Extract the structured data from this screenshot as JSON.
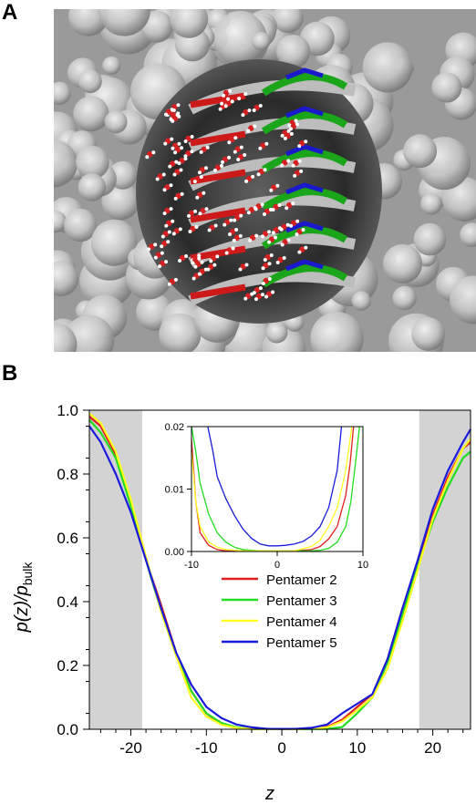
{
  "panels": {
    "a_label": "A",
    "b_label": "B"
  },
  "colors": {
    "surface": "#9a9a9a",
    "surface_light": "#d0d0d0",
    "red": "#cc1a1a",
    "green": "#1aa51a",
    "blue": "#1a1acc",
    "gray_band": "#d3d3d3"
  },
  "chart_data": [
    {
      "type": "line",
      "ylabel": "p(z)/p_bulk",
      "ylabel_main": "p(z)/p",
      "ylabel_sub": "bulk",
      "xlabel": "z",
      "xlim": [
        -25.5,
        25
      ],
      "ylim": [
        0,
        1.0
      ],
      "xticks": [
        -20,
        -10,
        0,
        10,
        20
      ],
      "xtick_labels": [
        "-20",
        "-10",
        "0",
        "10",
        "20"
      ],
      "yticks": [
        0,
        0.2,
        0.4,
        0.6,
        0.8,
        1.0
      ],
      "ytick_labels": [
        "0.0",
        "0.2",
        "0.4",
        "0.6",
        "0.8",
        "1.0"
      ],
      "shaded_x_ranges": [
        [
          -25.5,
          -18.5
        ],
        [
          18.2,
          25
        ]
      ],
      "legend_position": "center",
      "series": [
        {
          "name": "Pentamer 2",
          "color": "#e02020",
          "x": [
            -25.5,
            -24,
            -22,
            -20,
            -18,
            -16,
            -14,
            -12,
            -10,
            -8,
            -6,
            -4,
            -2,
            0,
            2,
            4,
            6,
            8,
            10,
            12,
            14,
            16,
            18,
            20,
            22,
            24,
            25
          ],
          "y": [
            0.98,
            0.95,
            0.86,
            0.71,
            0.53,
            0.39,
            0.24,
            0.12,
            0.05,
            0.015,
            0.004,
            0.001,
            0.0005,
            0.0005,
            0.0005,
            0.002,
            0.008,
            0.03,
            0.07,
            0.11,
            0.22,
            0.38,
            0.52,
            0.67,
            0.79,
            0.88,
            0.9
          ]
        },
        {
          "name": "Pentamer 3",
          "color": "#22dd22",
          "x": [
            -25.5,
            -24,
            -22,
            -20,
            -18,
            -16,
            -14,
            -12,
            -10,
            -8,
            -6,
            -4,
            -2,
            0,
            2,
            4,
            6,
            8,
            10,
            12,
            14,
            16,
            18,
            20,
            22,
            24,
            25
          ],
          "y": [
            0.97,
            0.93,
            0.85,
            0.7,
            0.53,
            0.37,
            0.23,
            0.12,
            0.05,
            0.02,
            0.006,
            0.001,
            0.0005,
            0.0005,
            0.0005,
            0.0005,
            0.001,
            0.007,
            0.05,
            0.1,
            0.21,
            0.36,
            0.51,
            0.65,
            0.76,
            0.85,
            0.87
          ]
        },
        {
          "name": "Pentamer 4",
          "color": "#ffff20",
          "x": [
            -25.5,
            -24,
            -22,
            -20,
            -18,
            -16,
            -14,
            -12,
            -10,
            -8,
            -6,
            -4,
            -2,
            0,
            2,
            4,
            6,
            8,
            10,
            12,
            14,
            16,
            18,
            20,
            22,
            24,
            25
          ],
          "y": [
            0.99,
            0.96,
            0.87,
            0.72,
            0.54,
            0.37,
            0.23,
            0.1,
            0.04,
            0.014,
            0.004,
            0.001,
            0.0005,
            0.0005,
            0.0005,
            0.002,
            0.006,
            0.025,
            0.06,
            0.1,
            0.19,
            0.34,
            0.5,
            0.66,
            0.78,
            0.88,
            0.91
          ]
        },
        {
          "name": "Pentamer 5",
          "color": "#1a1adc",
          "x": [
            -25.5,
            -24,
            -22,
            -20,
            -18,
            -16,
            -14,
            -12,
            -10,
            -8,
            -6,
            -4,
            -2,
            0,
            2,
            4,
            6,
            8,
            10,
            12,
            14,
            16,
            18,
            20,
            22,
            24,
            25
          ],
          "y": [
            0.95,
            0.9,
            0.8,
            0.68,
            0.53,
            0.38,
            0.24,
            0.14,
            0.07,
            0.035,
            0.015,
            0.006,
            0.0015,
            0.0012,
            0.0015,
            0.005,
            0.015,
            0.05,
            0.08,
            0.11,
            0.22,
            0.38,
            0.53,
            0.69,
            0.81,
            0.9,
            0.94
          ]
        }
      ]
    },
    {
      "type": "line",
      "role": "inset",
      "xlim": [
        -10,
        10
      ],
      "ylim": [
        0,
        0.02
      ],
      "xticks": [
        -10,
        0,
        10
      ],
      "xtick_labels": [
        "-10",
        "0",
        "10"
      ],
      "yticks": [
        0,
        0.01,
        0.02
      ],
      "ytick_labels": [
        "0.00",
        "0.01",
        "0.02"
      ],
      "series": [
        {
          "name": "Pentamer 2",
          "color": "#e02020",
          "x": [
            -10,
            -9.5,
            -9,
            -8,
            -7,
            -6,
            -5,
            -4,
            -2,
            0,
            2,
            4,
            5,
            6,
            7,
            8,
            8.5,
            8.9
          ],
          "y": [
            0.018,
            0.008,
            0.003,
            0.001,
            0.0003,
            0.0001,
            0.0001,
            0.0001,
            0.0001,
            0.0001,
            0.0001,
            0.0003,
            0.0008,
            0.002,
            0.004,
            0.009,
            0.014,
            0.02
          ]
        },
        {
          "name": "Pentamer 3",
          "color": "#22dd22",
          "x": [
            -10,
            -9.5,
            -9,
            -8,
            -7,
            -6,
            -5,
            -4,
            -2,
            0,
            2,
            4,
            5,
            6,
            7,
            8,
            8.6,
            9.2,
            9.6
          ],
          "y": [
            0.02,
            0.016,
            0.011,
            0.006,
            0.003,
            0.0015,
            0.0007,
            0.0003,
            0.0001,
            0.0001,
            0.0001,
            0.0001,
            0.0002,
            0.0005,
            0.0015,
            0.004,
            0.008,
            0.015,
            0.02
          ]
        },
        {
          "name": "Pentamer 4",
          "color": "#ffff20",
          "x": [
            -10,
            -9.5,
            -9,
            -8,
            -7,
            -6,
            -5,
            -4,
            -2,
            0,
            2,
            4,
            5,
            6,
            7,
            8,
            8.7
          ],
          "y": [
            0.016,
            0.008,
            0.004,
            0.0015,
            0.0007,
            0.0003,
            0.0002,
            0.0001,
            0.0001,
            0.0001,
            0.0001,
            0.0008,
            0.0018,
            0.004,
            0.007,
            0.013,
            0.02
          ]
        },
        {
          "name": "Pentamer 5",
          "color": "#1a1adc",
          "x": [
            -8.1,
            -7.5,
            -7,
            -6,
            -5,
            -4,
            -3,
            -2,
            -1,
            0,
            1,
            2,
            3,
            4,
            5,
            6,
            7,
            7.5
          ],
          "y": [
            0.02,
            0.016,
            0.012,
            0.0085,
            0.0058,
            0.0036,
            0.0021,
            0.0012,
            0.0009,
            0.0009,
            0.001,
            0.0012,
            0.0016,
            0.0025,
            0.004,
            0.007,
            0.013,
            0.02
          ]
        }
      ]
    }
  ]
}
